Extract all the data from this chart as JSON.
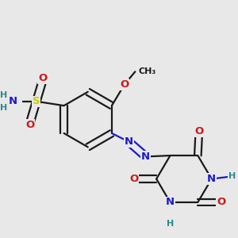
{
  "bg_color": "#e8e8e8",
  "bond_color": "#1a1a1a",
  "bond_width": 1.6,
  "colors": {
    "C": "#1a1a1a",
    "N": "#1a1acc",
    "O": "#cc1a1a",
    "S": "#cccc00",
    "H": "#2a8a8a"
  },
  "font_size": 9.5
}
